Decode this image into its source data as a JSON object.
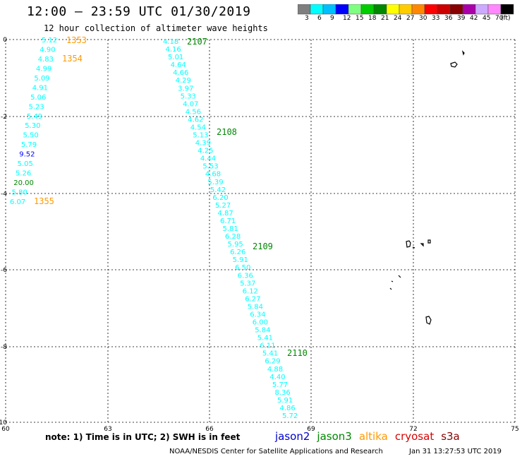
{
  "header": {
    "title": "12:00 — 23:59 UTC 01/30/2019",
    "subtitle": "12 hour collection of altimeter wave heights"
  },
  "colorbar": {
    "colors": [
      "#7f7f7f",
      "#00ffff",
      "#00bfff",
      "#0000ff",
      "#7fff7f",
      "#00cc00",
      "#008800",
      "#ffff00",
      "#ffcc00",
      "#ff8800",
      "#ff0000",
      "#cc0000",
      "#880000",
      "#aa00aa",
      "#ccaaff",
      "#ff88ff",
      "#000000"
    ],
    "labels": [
      "3",
      "6",
      "9",
      "12",
      "15",
      "18",
      "21",
      "24",
      "27",
      "30",
      "33",
      "36",
      "39",
      "42",
      "45",
      "70",
      "(ft)"
    ]
  },
  "axes": {
    "y_labels": [
      "0",
      "-2",
      "-4",
      "-6",
      "-8",
      "-10"
    ],
    "x_labels": [
      "60",
      "63",
      "66",
      "69",
      "72",
      "75"
    ]
  },
  "passes": [
    {
      "label": "1353",
      "color": "#ff9900"
    },
    {
      "label": "1354",
      "color": "#ff9900"
    },
    {
      "label": "1355",
      "color": "#ff9900"
    },
    {
      "label": "2107",
      "color": "#008800"
    },
    {
      "label": "2108",
      "color": "#008800"
    },
    {
      "label": "2109",
      "color": "#008800"
    },
    {
      "label": "2110",
      "color": "#008800"
    }
  ],
  "track_left": {
    "values": [
      "5.12",
      "4.90",
      "4.83",
      "4.99",
      "5.09",
      "4.91",
      "5.06",
      "5.23",
      "5.49",
      "5.30",
      "5.50",
      "5.79",
      "9.52",
      "5.05",
      "5.26",
      "20.00",
      "5.80",
      "6.07"
    ],
    "colors": [
      "#00ffff",
      "#00ffff",
      "#00ffff",
      "#00ffff",
      "#00ffff",
      "#00ffff",
      "#00ffff",
      "#00ffff",
      "#00ffff",
      "#00ffff",
      "#00ffff",
      "#00ffff",
      "#0000ff",
      "#00ffff",
      "#00ffff",
      "#008800",
      "#00ffff",
      "#00ffff"
    ]
  },
  "track_right": {
    "values": [
      "4.18",
      "4.16",
      "5.01",
      "4.64",
      "4.66",
      "4.29",
      "3.97",
      "5.33",
      "4.07",
      "4.56",
      "4.62",
      "4.54",
      "5.13",
      "4.39",
      "4.25",
      "4.44",
      "5.53",
      "4.68",
      "5.39",
      "5.42",
      "6.20",
      "5.27",
      "4.87",
      "6.71",
      "5.81",
      "6.28",
      "5.95",
      "6.26",
      "5.91",
      "6.50",
      "6.36",
      "5.37",
      "6.12",
      "6.27",
      "5.84",
      "6.34",
      "6.00",
      "5.84",
      "5.41",
      "6.11",
      "5.41",
      "6.29",
      "4.88",
      "4.40",
      "5.77",
      "8.36",
      "5.91",
      "4.86",
      "5.72"
    ],
    "colors": [
      "#00ffff",
      "#00ffff",
      "#00ffff",
      "#00ffff",
      "#00ffff",
      "#00ffff",
      "#00ffff",
      "#00ffff",
      "#00ffff",
      "#00ffff",
      "#00ffff",
      "#00ffff",
      "#00ffff",
      "#00ffff",
      "#00ffff",
      "#00ffff",
      "#00ffff",
      "#00ffff",
      "#00ffff",
      "#00ffff",
      "#00ffff",
      "#00ffff",
      "#00ffff",
      "#00ffff",
      "#00ffff",
      "#00ffff",
      "#00ffff",
      "#00ffff",
      "#00ffff",
      "#00ffff",
      "#00ffff",
      "#00ffff",
      "#00ffff",
      "#00ffff",
      "#00ffff",
      "#00ffff",
      "#00ffff",
      "#00ffff",
      "#00ffff",
      "#00ffff",
      "#00ffff",
      "#00ffff",
      "#00ffff",
      "#00ffff",
      "#00ffff",
      "#00ffff",
      "#00ffff",
      "#00ffff",
      "#00ffff"
    ]
  },
  "footer": {
    "note": "note: 1) Time is in UTC; 2) SWH is in feet",
    "legend": [
      {
        "name": "jason2",
        "color": "#0000cc"
      },
      {
        "name": "jason3",
        "color": "#008800"
      },
      {
        "name": "altika",
        "color": "#ff9900"
      },
      {
        "name": "cryosat",
        "color": "#dd0000"
      },
      {
        "name": "s3a",
        "color": "#880000"
      }
    ],
    "credit": "NOAA/NESDIS Center for Satellite Applications and Research",
    "timestamp": "Jan 31 13:27:53 UTC 2019"
  }
}
